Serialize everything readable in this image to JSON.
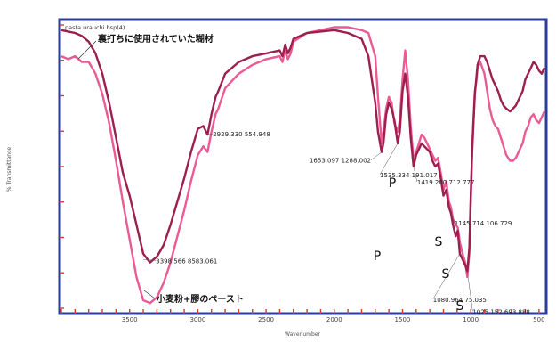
{
  "chart_data": {
    "type": "line",
    "file_label": "pasta urauchi.bsp(4)",
    "xlabel": "Wavenumber",
    "ylabel": "% Transmittance",
    "xlim": [
      4000,
      460
    ],
    "ylim": [
      0,
      100
    ],
    "x_ticks": [
      3500,
      3000,
      2500,
      2000,
      1500,
      1000,
      500
    ],
    "series": [
      {
        "name": "裏打ちに使用されていた糊材",
        "color": "#9c1f4d",
        "x": [
          4000,
          3950,
          3900,
          3850,
          3800,
          3750,
          3700,
          3650,
          3600,
          3550,
          3500,
          3450,
          3400,
          3350,
          3300,
          3250,
          3200,
          3150,
          3100,
          3050,
          3000,
          2960,
          2929,
          2900,
          2870,
          2850,
          2800,
          2700,
          2600,
          2500,
          2400,
          2380,
          2360,
          2340,
          2320,
          2300,
          2200,
          2100,
          2000,
          1900,
          1800,
          1750,
          1700,
          1680,
          1653,
          1640,
          1620,
          1600,
          1580,
          1560,
          1535,
          1520,
          1500,
          1480,
          1460,
          1440,
          1419,
          1400,
          1380,
          1360,
          1340,
          1320,
          1300,
          1280,
          1260,
          1240,
          1220,
          1200,
          1180,
          1160,
          1145,
          1130,
          1110,
          1095,
          1080,
          1060,
          1040,
          1025,
          1010,
          1000,
          990,
          980,
          970,
          960,
          950,
          930,
          900,
          880,
          860,
          840,
          820,
          800,
          780,
          760,
          740,
          712,
          690,
          670,
          650,
          620,
          600,
          580,
          560,
          540,
          520,
          500,
          480,
          460
        ],
        "y": [
          97,
          96.5,
          96,
          95,
          93,
          89,
          82,
          72,
          60,
          48,
          40,
          30,
          20,
          17,
          19,
          23,
          30,
          38,
          46,
          55,
          63,
          64,
          61,
          68,
          74,
          76,
          82,
          86,
          88,
          89,
          90,
          88,
          92,
          89,
          91,
          94,
          96,
          96.5,
          97,
          96,
          94,
          88,
          72,
          62,
          55,
          58,
          68,
          72,
          70,
          66,
          58,
          62,
          76,
          82,
          74,
          60,
          50,
          54,
          56,
          58,
          57,
          56,
          55,
          52,
          50,
          51,
          46,
          40,
          42,
          36,
          34,
          30,
          26,
          28,
          20,
          18,
          16,
          14,
          22,
          40,
          55,
          65,
          75,
          80,
          85,
          88,
          88,
          86,
          83,
          80,
          78,
          76,
          73,
          71,
          70,
          69,
          70,
          71,
          73,
          76,
          80,
          82,
          84,
          86,
          85,
          83,
          82,
          84
        ]
      },
      {
        "name": "小麦粉+膠のペースト",
        "color": "#ea5a94",
        "x": [
          4000,
          3950,
          3900,
          3850,
          3800,
          3750,
          3700,
          3650,
          3600,
          3550,
          3500,
          3450,
          3400,
          3350,
          3300,
          3250,
          3200,
          3150,
          3100,
          3050,
          3000,
          2960,
          2929,
          2900,
          2870,
          2850,
          2800,
          2700,
          2600,
          2500,
          2400,
          2380,
          2360,
          2340,
          2320,
          2300,
          2200,
          2100,
          2000,
          1900,
          1800,
          1750,
          1700,
          1680,
          1653,
          1640,
          1620,
          1600,
          1580,
          1560,
          1535,
          1520,
          1500,
          1480,
          1460,
          1440,
          1419,
          1400,
          1380,
          1360,
          1340,
          1320,
          1300,
          1280,
          1260,
          1240,
          1220,
          1200,
          1180,
          1160,
          1145,
          1130,
          1110,
          1095,
          1080,
          1060,
          1040,
          1025,
          1010,
          1000,
          990,
          980,
          970,
          960,
          950,
          930,
          900,
          880,
          860,
          840,
          820,
          800,
          780,
          760,
          740,
          712,
          690,
          670,
          650,
          620,
          600,
          580,
          560,
          540,
          520,
          500,
          480,
          460
        ],
        "y": [
          88,
          87,
          88,
          86,
          86,
          82,
          75,
          65,
          52,
          38,
          25,
          12,
          4,
          3,
          5,
          10,
          17,
          26,
          35,
          45,
          54,
          57,
          55,
          62,
          68,
          70,
          77,
          82,
          85,
          87,
          88,
          86,
          90,
          87,
          89,
          93,
          96,
          97,
          98,
          98,
          97,
          96,
          88,
          74,
          58,
          62,
          70,
          74,
          72,
          65,
          62,
          66,
          80,
          90,
          80,
          64,
          52,
          55,
          58,
          61,
          60,
          58,
          56,
          54,
          52,
          53,
          48,
          42,
          45,
          38,
          36,
          32,
          30,
          29,
          24,
          20,
          17,
          12,
          20,
          38,
          55,
          66,
          76,
          79,
          84,
          86,
          82,
          76,
          70,
          66,
          64,
          63,
          60,
          57,
          54,
          52,
          52,
          53,
          55,
          58,
          62,
          64,
          67,
          68,
          66,
          65,
          67,
          69
        ]
      }
    ],
    "peak_labels": [
      {
        "x": 3398.566,
        "y": 18,
        "text": "3398.566  8583.061"
      },
      {
        "x": 2929.33,
        "y": 61,
        "text": "2929.330  554.948"
      },
      {
        "x": 1653.097,
        "y": 55,
        "text": "1653.097  1288.002"
      },
      {
        "x": 1535.334,
        "y": 58,
        "text": "1535.334  191.017"
      },
      {
        "x": 1419.2,
        "y": 50,
        "text": "1419.200  712.777"
      },
      {
        "x": 1145.714,
        "y": 34,
        "text": "1145.714  106.729"
      },
      {
        "x": 1080.964,
        "y": 20,
        "text": "1080.964  75.035"
      },
      {
        "x": 1025.152,
        "y": 14,
        "text": "1025.152  693.888"
      }
    ],
    "markers": [
      {
        "letter": "P",
        "x": 1653
      },
      {
        "letter": "P",
        "x": 1535
      },
      {
        "letter": "S",
        "x": 1145
      },
      {
        "letter": "S",
        "x": 1080
      },
      {
        "letter": "S",
        "x": 1025
      }
    ]
  }
}
